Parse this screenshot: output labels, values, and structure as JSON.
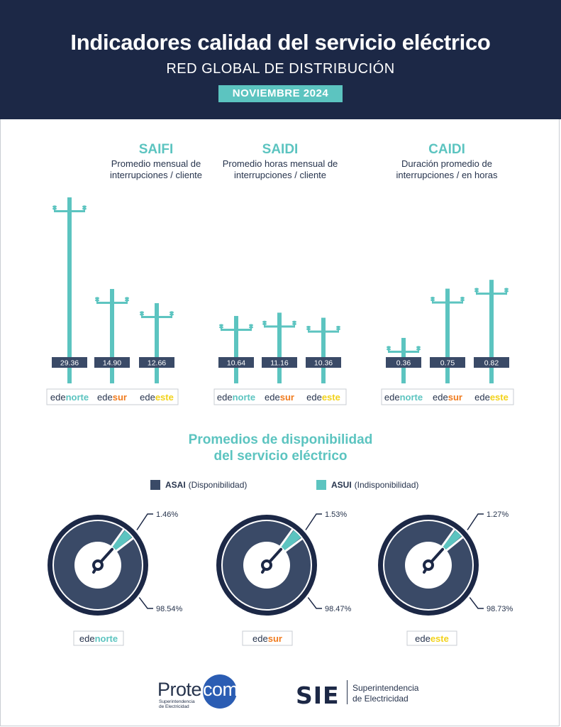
{
  "header": {
    "title": "Indicadores calidad del servicio eléctrico",
    "subtitle": "RED GLOBAL DE DISTRIBUCIÓN",
    "period": "NOVIEMBRE 2024"
  },
  "colors": {
    "navy": "#1c2846",
    "teal": "#5cc4c0",
    "dark_ring": "#3a4a67",
    "norte": "#5cc4c0",
    "sur": "#f07b1e",
    "este": "#f2d21a"
  },
  "companies": [
    {
      "prefix": "ede",
      "suffix": "norte",
      "color": "#5cc4c0"
    },
    {
      "prefix": "ede",
      "suffix": "sur",
      "color": "#f07b1e"
    },
    {
      "prefix": "ede",
      "suffix": "este",
      "color": "#f2d21a"
    }
  ],
  "chart_data": [
    {
      "type": "bar",
      "title": "SAIFI",
      "subtitle": "Promedio mensual de interrupciones / cliente",
      "categories": [
        "edenorte",
        "edesur",
        "edeeste"
      ],
      "values": [
        29.36,
        14.9,
        12.66
      ],
      "labels": [
        "29.36",
        "14.90",
        "12.66"
      ],
      "ylim": [
        0,
        29.36
      ]
    },
    {
      "type": "bar",
      "title": "SAIDI",
      "subtitle": "Promedio horas mensual de interrupciones / cliente",
      "categories": [
        "edenorte",
        "edesur",
        "edeeste"
      ],
      "values": [
        10.64,
        11.16,
        10.36
      ],
      "labels": [
        "10.64",
        "11.16",
        "10.36"
      ],
      "ylim": [
        0,
        29.36
      ]
    },
    {
      "type": "bar",
      "title": "CAIDI",
      "subtitle": "Duración promedio de interrupciones / en horas",
      "categories": [
        "edenorte",
        "edesur",
        "edeeste"
      ],
      "values": [
        0.36,
        0.75,
        0.82
      ],
      "labels": [
        "0.36",
        "0.75",
        "0.82"
      ],
      "ylim": [
        0,
        0.95
      ]
    },
    {
      "type": "pie",
      "title": "Promedios de disponibilidad del servicio eléctrico",
      "legend": [
        {
          "bold": "ASAI",
          "text": "(Disponibilidad)",
          "color": "#3a4a67"
        },
        {
          "bold": "ASUI",
          "text": "(Indisponibilidad)",
          "color": "#5cc4c0"
        }
      ],
      "categories": [
        "edenorte",
        "edesur",
        "edeeste"
      ],
      "series": [
        {
          "name": "ASAI",
          "values": [
            98.54,
            98.47,
            98.73
          ],
          "labels": [
            "98.54%",
            "98.47%",
            "98.73%"
          ]
        },
        {
          "name": "ASUI",
          "values": [
            1.46,
            1.53,
            1.27
          ],
          "labels": [
            "1.46%",
            "1.53%",
            "1.27%"
          ]
        }
      ]
    }
  ],
  "availability": {
    "title_line1": "Promedios de disponibilidad",
    "title_line2": "del servicio eléctrico"
  },
  "footer": {
    "protecom_prefix": "Prote",
    "protecom_suffix": "com",
    "protecom_sub1": "Superintendencia",
    "protecom_sub2": "de Electricidad",
    "sie_mark": "SIE",
    "sie_line1": "Superintendencia",
    "sie_line2": "de Electricidad"
  }
}
